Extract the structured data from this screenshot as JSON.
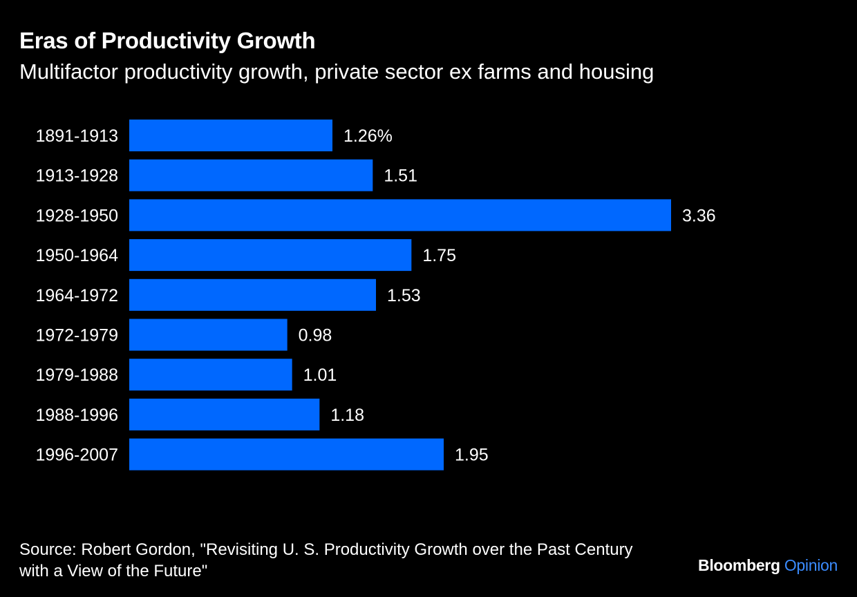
{
  "header": {
    "title": "Eras of Productivity Growth",
    "subtitle": "Multifactor productivity growth, private sector ex farms and housing"
  },
  "chart_data": {
    "type": "bar",
    "orientation": "horizontal",
    "title": "Eras of Productivity Growth",
    "subtitle": "Multifactor productivity growth, private sector ex farms and housing",
    "categories": [
      "1891-1913",
      "1913-1928",
      "1928-1950",
      "1950-1964",
      "1964-1972",
      "1972-1979",
      "1979-1988",
      "1988-1996",
      "1996-2007"
    ],
    "values": [
      1.26,
      1.51,
      3.36,
      1.75,
      1.53,
      0.98,
      1.01,
      1.18,
      1.95
    ],
    "data_labels": [
      "1.26%",
      "1.51",
      "3.36",
      "1.75",
      "1.53",
      "0.98",
      "1.01",
      "1.18",
      "1.95"
    ],
    "xlim": [
      0,
      3.36
    ],
    "xlabel": "",
    "ylabel": "",
    "grid": false,
    "legend": "none",
    "bar_color": "#0068ff"
  },
  "footer": {
    "source": "Source: Robert Gordon, \"Revisiting U. S. Productivity Growth over the Past Century with a View of the Future\"",
    "brand_main": "Bloomberg",
    "brand_accent": "Opinion"
  },
  "colors": {
    "background": "#000000",
    "text": "#ffffff",
    "bar": "#0068ff",
    "brand_accent": "#3b8cff"
  }
}
